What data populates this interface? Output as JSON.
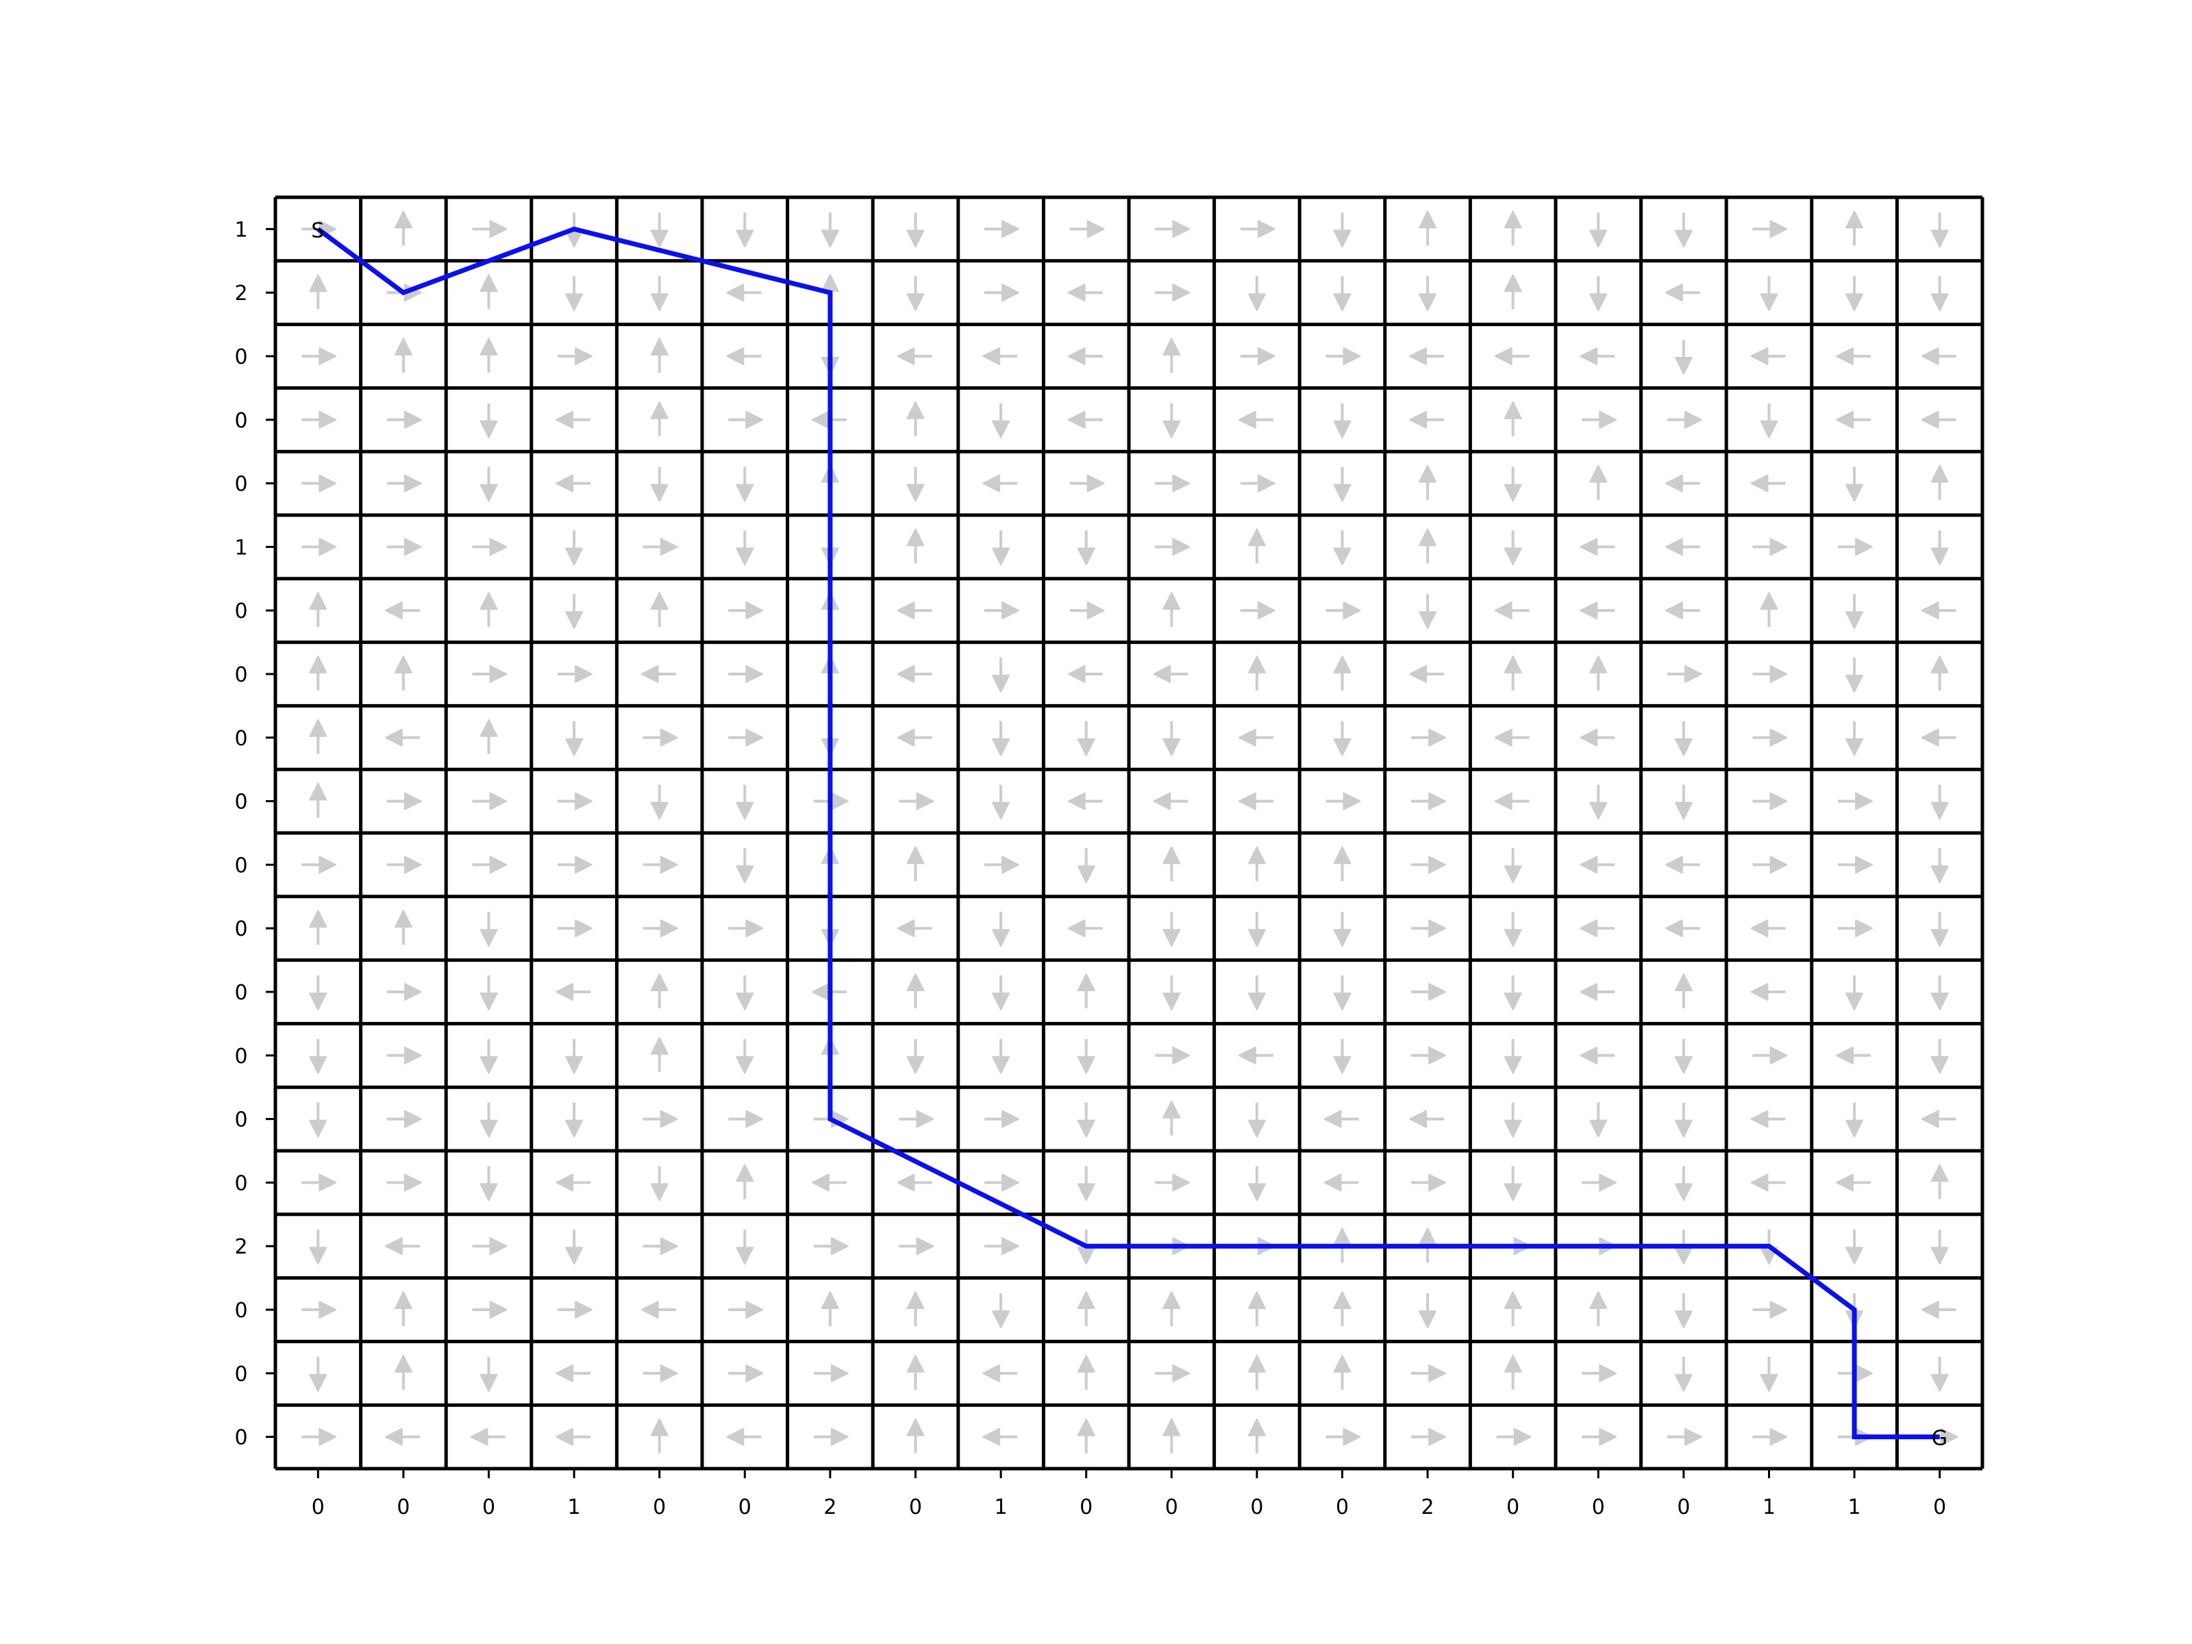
{
  "colors": {
    "path": "#0a10ee",
    "arrow": "#cccccc",
    "grid": "#000000",
    "background": "#ffffff"
  },
  "grid": {
    "rows": 20,
    "cols": 20,
    "row_labels": [
      "1",
      "2",
      "0",
      "0",
      "0",
      "1",
      "0",
      "0",
      "0",
      "0",
      "0",
      "0",
      "0",
      "0",
      "0",
      "0",
      "2",
      "0",
      "0",
      "0"
    ],
    "col_labels": [
      "0",
      "0",
      "0",
      "1",
      "0",
      "0",
      "2",
      "0",
      "1",
      "0",
      "0",
      "0",
      "0",
      "2",
      "0",
      "0",
      "0",
      "1",
      "1",
      "0"
    ],
    "arrows": [
      "RURDDDDDRRRRDUUDDRUD",
      "URUDDLUDRLRDDDUDLDDD",
      "RUURULDLLLURRLLLDLLL",
      "RRDLURLUDLDLDLURRDLL",
      "RRDLDDUDLRRRDUDULLDU",
      "RRRDRDDUDDRUDUDLLRRD",
      "ULUDURULRRURRDLLLUDL",
      "UURRLRULDLLUULUURRDU",
      "ULUDRRDLDDDLDRLLDRDL",
      "URRRDDRRDLLLRRLDDRRD",
      "RRRRRDUURDUUURDLLRRD",
      "UUDRRRDLDLDDDRDLLLRD",
      "DRDLUDLUDUDDDRDLULDD",
      "DRDDUDUDDDRLDRDLDRLD",
      "DRDDRRRRRDUDLLDDDLDL",
      "RRDLDULLRDRDLRDRDLLU",
      "DLRDRDRRRDRRUURRDDDD",
      "RURRLRUUDUUUUDUUDRDL",
      "DUDLRRRULURUURURDDRD",
      "RLLLULRULUUURRRRRRRR"
    ]
  },
  "path": {
    "nodes": [
      [
        0,
        0
      ],
      [
        1,
        1
      ],
      [
        3,
        0
      ],
      [
        6,
        1
      ],
      [
        6,
        14
      ],
      [
        9,
        16
      ],
      [
        17,
        16
      ],
      [
        18,
        17
      ],
      [
        18,
        19
      ],
      [
        19,
        19
      ]
    ],
    "start_label": "S",
    "goal_label": "G"
  }
}
